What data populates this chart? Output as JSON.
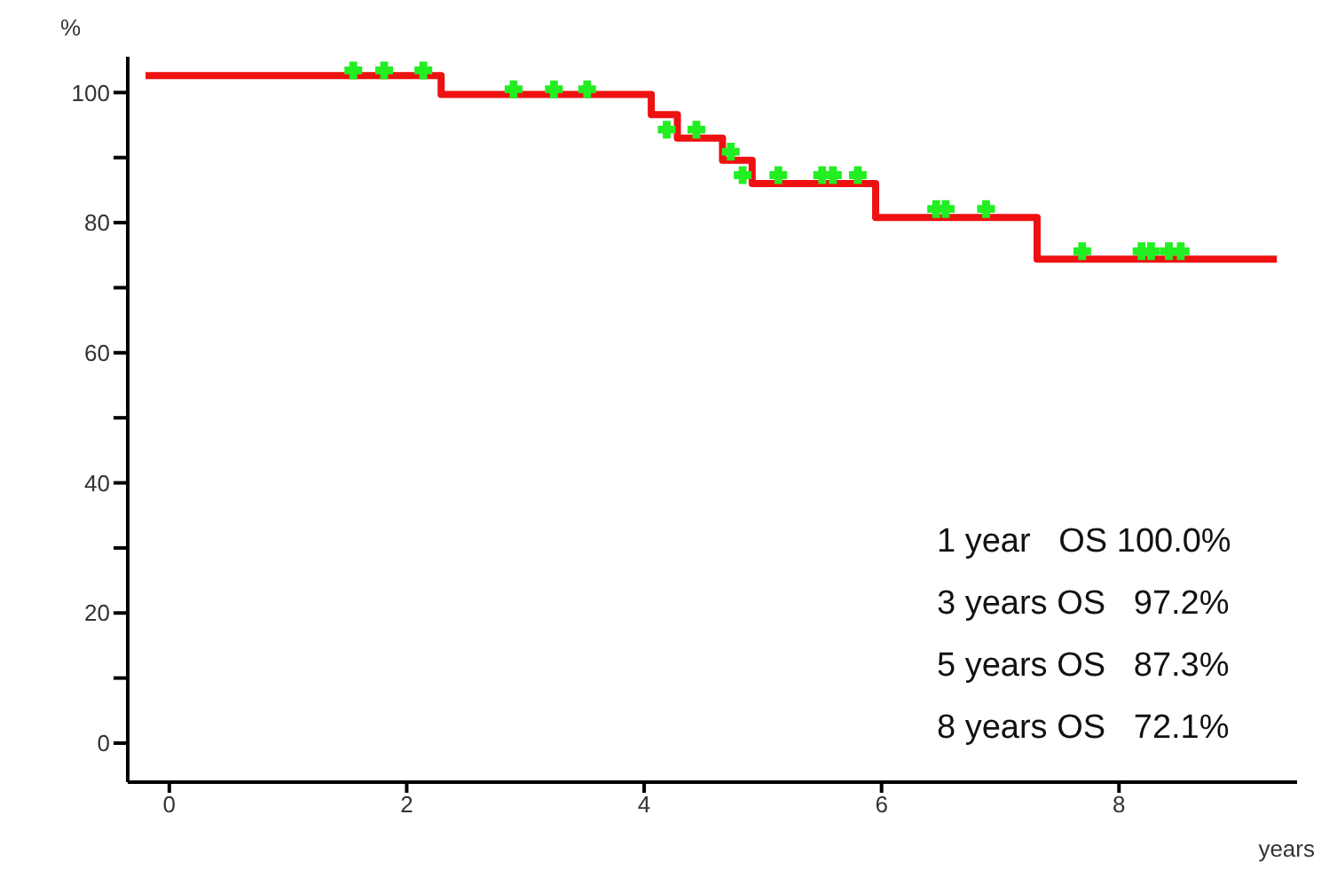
{
  "chart_data": {
    "type": "step",
    "xlabel": "years",
    "ylabel": "%",
    "xlim": [
      -0.35,
      9.5
    ],
    "xticks": [
      0,
      2,
      4,
      6,
      8
    ],
    "ylim": [
      -6,
      105.5
    ],
    "yticks": [
      0,
      {
        "value": 10,
        "label": null
      },
      20,
      {
        "value": 30,
        "label": null
      },
      40,
      {
        "value": 50,
        "label": null
      },
      60,
      {
        "value": 70,
        "label": null
      },
      80,
      {
        "value": 90,
        "label": null
      },
      100
    ],
    "series": [
      {
        "color": "#ee1111",
        "line_style": "solid",
        "marker": "none",
        "x": [
          -0.2,
          2.29,
          4.06,
          4.28,
          4.66,
          4.91,
          5.95,
          7.31,
          9.33
        ],
        "values": [
          102.6,
          99.7,
          96.6,
          93.0,
          89.6,
          86.0,
          80.8,
          74.4,
          74.4
        ]
      },
      {
        "type": "scatter",
        "color": "#22ee22",
        "marker": "cross",
        "x": [
          1.55,
          1.81,
          2.14,
          2.9,
          3.24,
          3.52,
          4.19,
          4.44,
          4.73,
          4.83,
          5.13,
          5.5,
          5.59,
          5.8,
          6.46,
          6.54,
          6.88,
          7.69,
          8.19,
          8.27,
          8.42,
          8.52
        ],
        "values": [
          103.4,
          103.4,
          103.4,
          100.5,
          100.5,
          100.5,
          94.3,
          94.3,
          90.9,
          87.3,
          87.3,
          87.3,
          87.3,
          87.3,
          82.1,
          82.1,
          82.1,
          75.6,
          75.6,
          75.6,
          75.6,
          75.6
        ]
      }
    ],
    "annotations": [
      "1 year   OS 100.0%",
      "3 years OS   97.2%",
      "5 years OS   87.3%",
      "8 years OS   72.1%"
    ],
    "grid": false
  }
}
